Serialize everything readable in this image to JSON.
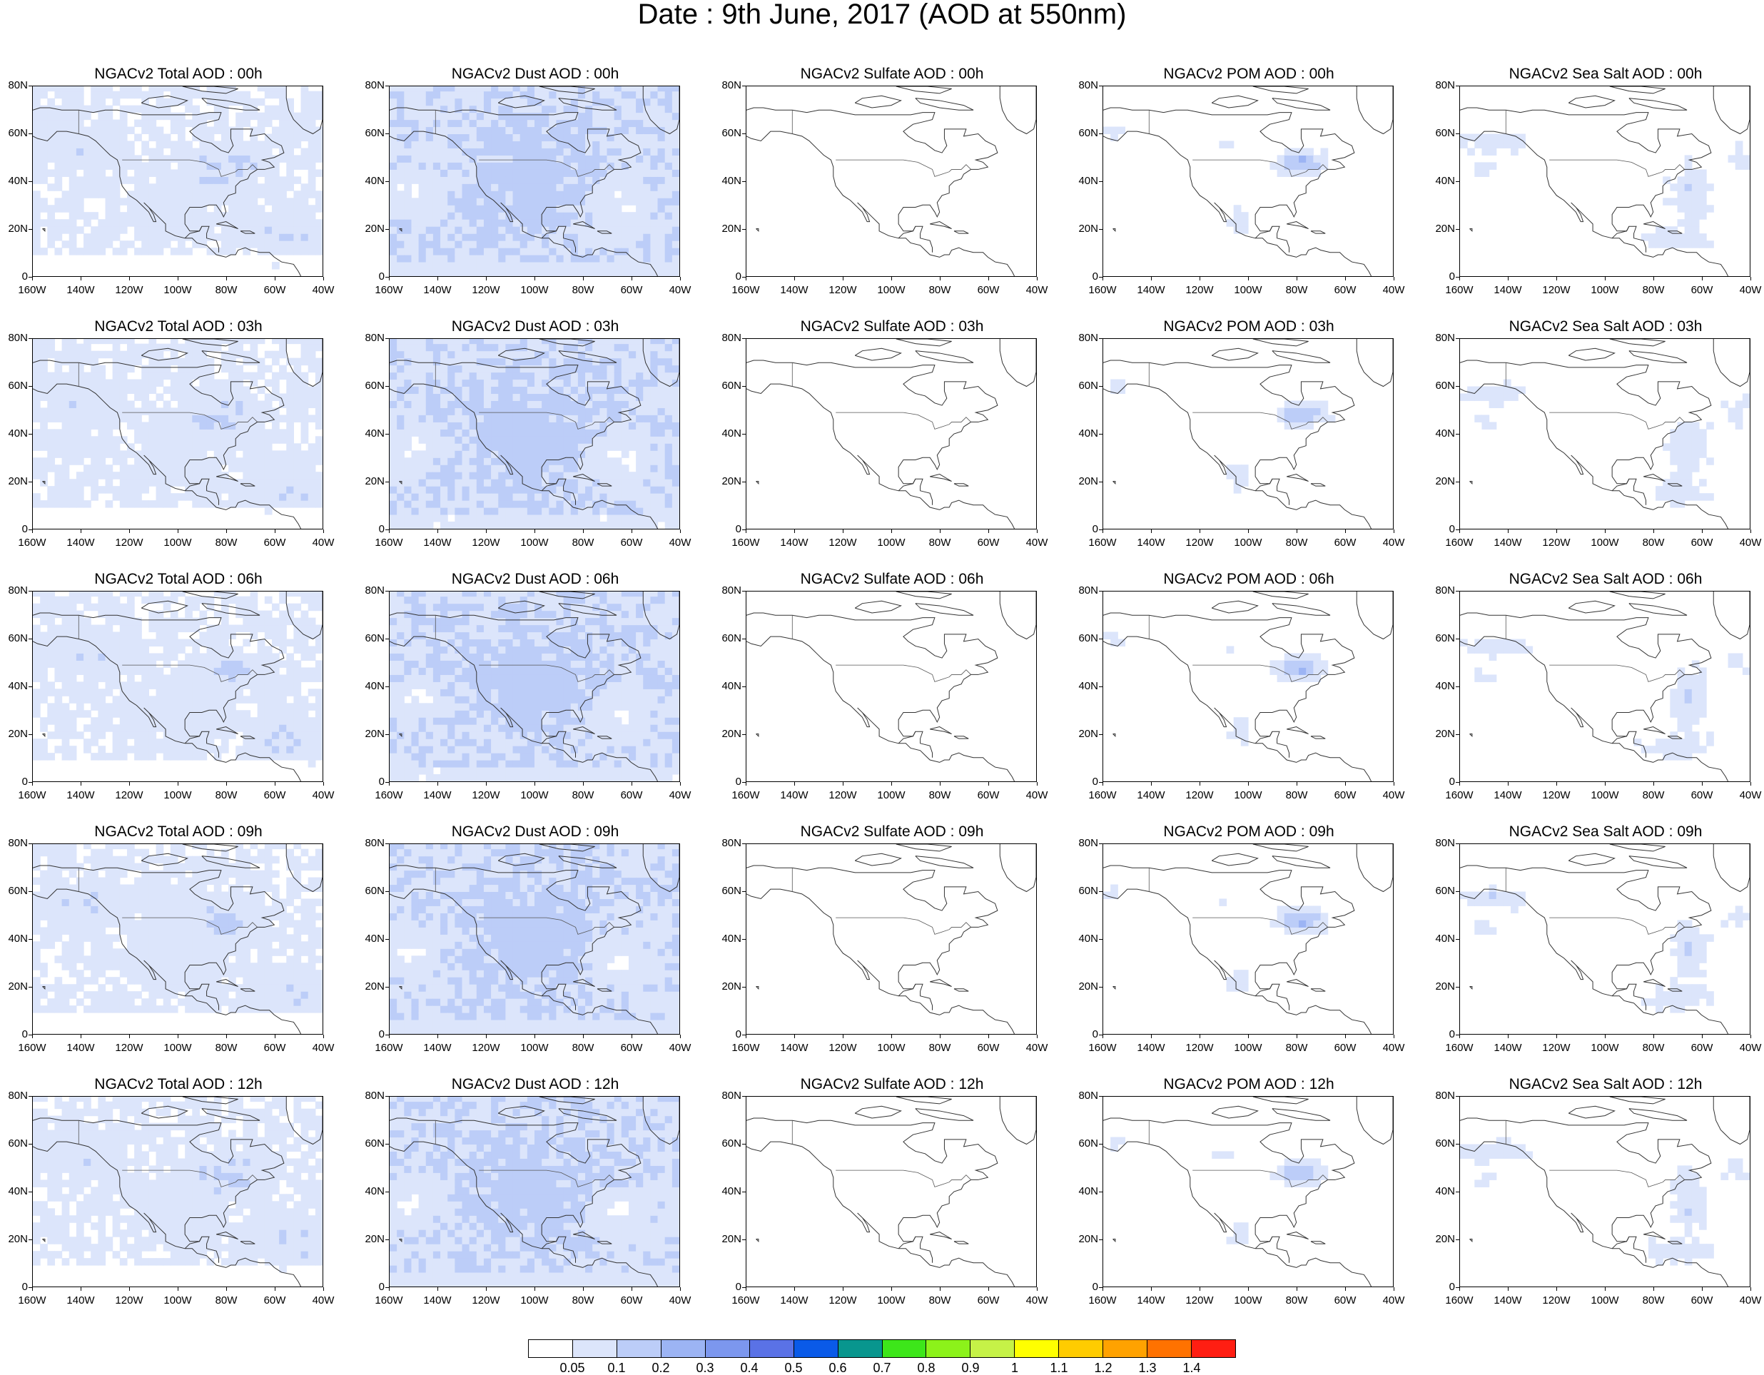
{
  "title": "Date : 9th June, 2017 (AOD at 550nm)",
  "map": {
    "x_labels": [
      "160W",
      "140W",
      "120W",
      "100W",
      "80W",
      "60W",
      "40W"
    ],
    "y_labels": [
      "80N",
      "60N",
      "40N",
      "20N",
      "0"
    ],
    "lon_range": [
      -160,
      -40
    ],
    "lat_range": [
      0,
      80
    ]
  },
  "panels": [
    [
      {
        "title": "NGACv2 Total AOD : 00h",
        "species": "total"
      },
      {
        "title": "NGACv2 Dust AOD : 00h",
        "species": "dust"
      },
      {
        "title": "NGACv2 Sulfate AOD : 00h",
        "species": "sulfate"
      },
      {
        "title": "NGACv2 POM AOD : 00h",
        "species": "pom"
      },
      {
        "title": "NGACv2 Sea Salt AOD : 00h",
        "species": "seasalt"
      }
    ],
    [
      {
        "title": "NGACv2 Total AOD : 03h",
        "species": "total"
      },
      {
        "title": "NGACv2 Dust AOD : 03h",
        "species": "dust"
      },
      {
        "title": "NGACv2 Sulfate AOD : 03h",
        "species": "sulfate"
      },
      {
        "title": "NGACv2 POM AOD : 03h",
        "species": "pom"
      },
      {
        "title": "NGACv2 Sea Salt AOD : 03h",
        "species": "seasalt"
      }
    ],
    [
      {
        "title": "NGACv2 Total AOD : 06h",
        "species": "total"
      },
      {
        "title": "NGACv2 Dust AOD : 06h",
        "species": "dust"
      },
      {
        "title": "NGACv2 Sulfate AOD : 06h",
        "species": "sulfate"
      },
      {
        "title": "NGACv2 POM AOD : 06h",
        "species": "pom"
      },
      {
        "title": "NGACv2 Sea Salt AOD : 06h",
        "species": "seasalt"
      }
    ],
    [
      {
        "title": "NGACv2 Total AOD : 09h",
        "species": "total"
      },
      {
        "title": "NGACv2 Dust AOD : 09h",
        "species": "dust"
      },
      {
        "title": "NGACv2 Sulfate AOD : 09h",
        "species": "sulfate"
      },
      {
        "title": "NGACv2 POM AOD : 09h",
        "species": "pom"
      },
      {
        "title": "NGACv2 Sea Salt  AOD : 09h",
        "species": "seasalt"
      }
    ],
    [
      {
        "title": "NGACv2 Total AOD  : 12h",
        "species": "total"
      },
      {
        "title": "NGACv2 Dust AOD : 12h",
        "species": "dust"
      },
      {
        "title": "NGACv2 Sulfate AOD : 12h",
        "species": "sulfate"
      },
      {
        "title": "NGACv2 POM  AOD : 12h",
        "species": "pom"
      },
      {
        "title": "NGACv2 Sea Salt  AOD : 12h",
        "species": "seasalt"
      }
    ]
  ],
  "colorbar": {
    "colors": [
      "#ffffff",
      "#dce5fb",
      "#bccdf8",
      "#9cb4f4",
      "#7c97ee",
      "#5a72e6",
      "#0a5ae8",
      "#08968e",
      "#3de61a",
      "#8cf21a",
      "#c6f247",
      "#ffff00",
      "#ffcc00",
      "#ffa200",
      "#ff7200",
      "#ff1e12"
    ],
    "labels": [
      "0.05",
      "0.1",
      "0.2",
      "0.3",
      "0.4",
      "0.5",
      "0.6",
      "0.7",
      "0.8",
      "0.9",
      "1",
      "1.1",
      "1.2",
      "1.3",
      "1.4"
    ]
  }
}
